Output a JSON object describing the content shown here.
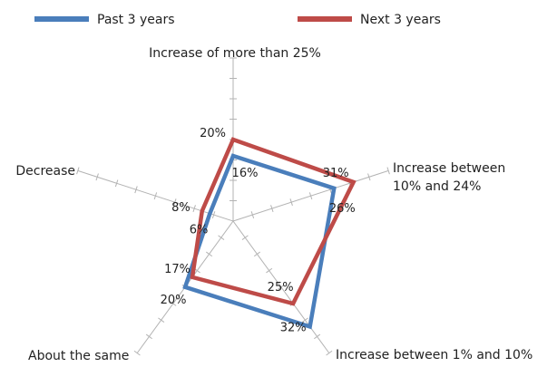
{
  "chart_data": {
    "type": "radar",
    "title": "",
    "axis_max": 40,
    "axes": [
      "Increase of more than 25%",
      "Increase between 10% and 24%",
      "Increase between 1% and 10%",
      "About the same",
      "Decrease"
    ],
    "series": [
      {
        "name": "Past 3 years",
        "color": "#4a7ebb",
        "values": [
          16,
          26,
          32,
          20,
          6
        ]
      },
      {
        "name": "Next 3 years",
        "color": "#be4b48",
        "values": [
          20,
          31,
          25,
          17,
          8
        ]
      }
    ],
    "legend_position": "top",
    "grid": false
  }
}
